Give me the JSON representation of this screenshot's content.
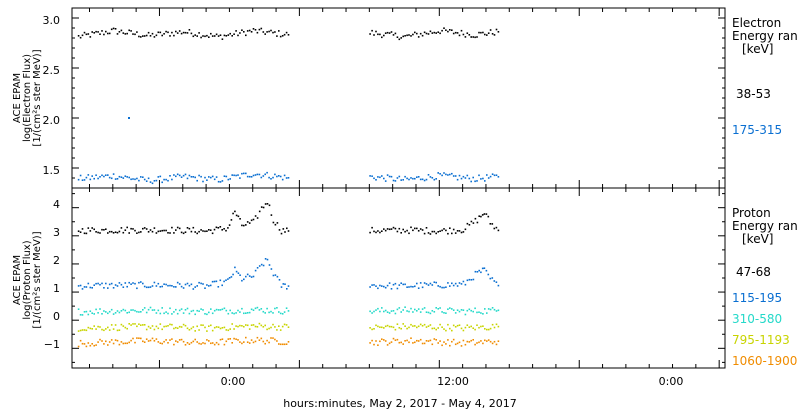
{
  "xlabel": "hours:minutes, May  2, 2017 - May  4, 2017",
  "x_ticks": [
    "0:00",
    "12:00",
    "0:00"
  ],
  "panels": [
    {
      "ylabel_lines": [
        "ACE EPAM",
        "log(Electron Flux)",
        "[1/(cm²s ster MeV)]"
      ],
      "legend_title": [
        "Electron",
        "Energy ran",
        "[keV]"
      ],
      "yticks": [
        "1.5",
        "2.0",
        "2.5",
        "3.0"
      ]
    },
    {
      "ylabel_lines": [
        "ACE EPAM",
        "log(Proton Flux)",
        "[1/(cm²s ster MeV)]"
      ],
      "legend_title": [
        "Proton",
        "Energy ran",
        "[keV]"
      ],
      "yticks": [
        "−1",
        "0",
        "1",
        "2",
        "3",
        "4"
      ]
    }
  ],
  "colors": {
    "black": "#000000",
    "blue": "#0a6fd1",
    "cyan": "#24d9c9",
    "yellow": "#c8d400",
    "orange": "#f08c00"
  },
  "chart_data": [
    {
      "type": "scatter",
      "x_unit": "hours since May 2 00:00",
      "xlim": [
        -19.5,
        36.5
      ],
      "ylim": [
        1.3,
        3.1
      ],
      "grid": false,
      "legend_placement": "right",
      "series": [
        {
          "name": "38-53",
          "color": "#000000",
          "segments": [
            {
              "x": [
                -19.0,
                -16.0,
                -13.0,
                -10.0,
                -7.0,
                -4.0,
                -1.0
              ],
              "y": [
                2.82,
                2.88,
                2.83,
                2.87,
                2.82,
                2.88,
                2.84
              ]
            },
            {
              "x": [
                6.0,
                9.0,
                12.0,
                15.0,
                17.0
              ],
              "y": [
                2.86,
                2.82,
                2.88,
                2.84,
                2.87
              ]
            }
          ]
        },
        {
          "name": "175-315",
          "color": "#0a6fd1",
          "segments": [
            {
              "x": [
                -19.0,
                -16.0,
                -13.0,
                -10.0,
                -7.0,
                -4.0,
                -1.0
              ],
              "y": [
                1.4,
                1.43,
                1.38,
                1.42,
                1.39,
                1.45,
                1.41
              ]
            },
            {
              "x": [
                6.0,
                9.0,
                12.0,
                15.0,
                17.0
              ],
              "y": [
                1.42,
                1.39,
                1.43,
                1.4,
                1.42
              ]
            }
          ],
          "outliers": [
            {
              "x": -14.7,
              "y": 2.01
            }
          ]
        }
      ]
    },
    {
      "type": "scatter",
      "x_unit": "hours since May 2 00:00",
      "xlim": [
        -19.5,
        36.5
      ],
      "ylim": [
        -1.7,
        4.7
      ],
      "grid": false,
      "legend_placement": "right",
      "series": [
        {
          "name": "47-68",
          "color": "#000000",
          "segments": [
            {
              "x": [
                -19.0,
                -12.0,
                -8.0,
                -6.2,
                -5.6,
                -5.0,
                -4.0,
                -3.3,
                -2.8,
                -2.3,
                -1.6,
                -1.0
              ],
              "y": [
                3.22,
                3.24,
                3.2,
                3.3,
                3.9,
                3.4,
                3.5,
                4.0,
                4.25,
                3.6,
                3.22,
                3.2
              ]
            },
            {
              "x": [
                6.0,
                9.0,
                12.0,
                14.0,
                15.2,
                15.8,
                16.3,
                17.0
              ],
              "y": [
                3.21,
                3.23,
                3.2,
                3.25,
                3.6,
                3.85,
                3.5,
                3.22
              ]
            }
          ]
        },
        {
          "name": "115-195",
          "color": "#0a6fd1",
          "segments": [
            {
              "x": [
                -19.0,
                -12.0,
                -8.0,
                -6.2,
                -5.6,
                -5.0,
                -4.0,
                -3.3,
                -2.8,
                -2.3,
                -1.6,
                -1.0
              ],
              "y": [
                1.25,
                1.28,
                1.24,
                1.4,
                1.8,
                1.5,
                1.6,
                2.0,
                2.15,
                1.7,
                1.26,
                1.24
              ]
            },
            {
              "x": [
                6.0,
                9.0,
                12.0,
                14.0,
                15.2,
                15.8,
                16.3,
                17.0
              ],
              "y": [
                1.26,
                1.24,
                1.28,
                1.3,
                1.7,
                1.8,
                1.5,
                1.26
              ]
            }
          ]
        },
        {
          "name": "310-580",
          "color": "#24d9c9",
          "segments": [
            {
              "x": [
                -19.0,
                -13.0,
                -8.0,
                -4.0,
                -1.0
              ],
              "y": [
                0.33,
                0.38,
                0.34,
                0.4,
                0.36
              ]
            },
            {
              "x": [
                6.0,
                10.0,
                14.0,
                17.0
              ],
              "y": [
                0.35,
                0.39,
                0.34,
                0.38
              ]
            }
          ]
        },
        {
          "name": "795-1193",
          "color": "#c8d400",
          "segments": [
            {
              "x": [
                -19.0,
                -13.0,
                -8.0,
                -4.0,
                -1.0
              ],
              "y": [
                -0.25,
                -0.2,
                -0.26,
                -0.18,
                -0.22
              ]
            },
            {
              "x": [
                6.0,
                10.0,
                14.0,
                17.0
              ],
              "y": [
                -0.24,
                -0.19,
                -0.25,
                -0.2
              ]
            }
          ]
        },
        {
          "name": "1060-1900",
          "color": "#f08c00",
          "segments": [
            {
              "x": [
                -19.0,
                -13.0,
                -8.0,
                -4.0,
                -1.0
              ],
              "y": [
                -0.8,
                -0.7,
                -0.78,
                -0.68,
                -0.74
              ]
            },
            {
              "x": [
                6.0,
                10.0,
                14.0,
                17.0
              ],
              "y": [
                -0.76,
                -0.7,
                -0.79,
                -0.72
              ]
            }
          ]
        }
      ]
    }
  ]
}
